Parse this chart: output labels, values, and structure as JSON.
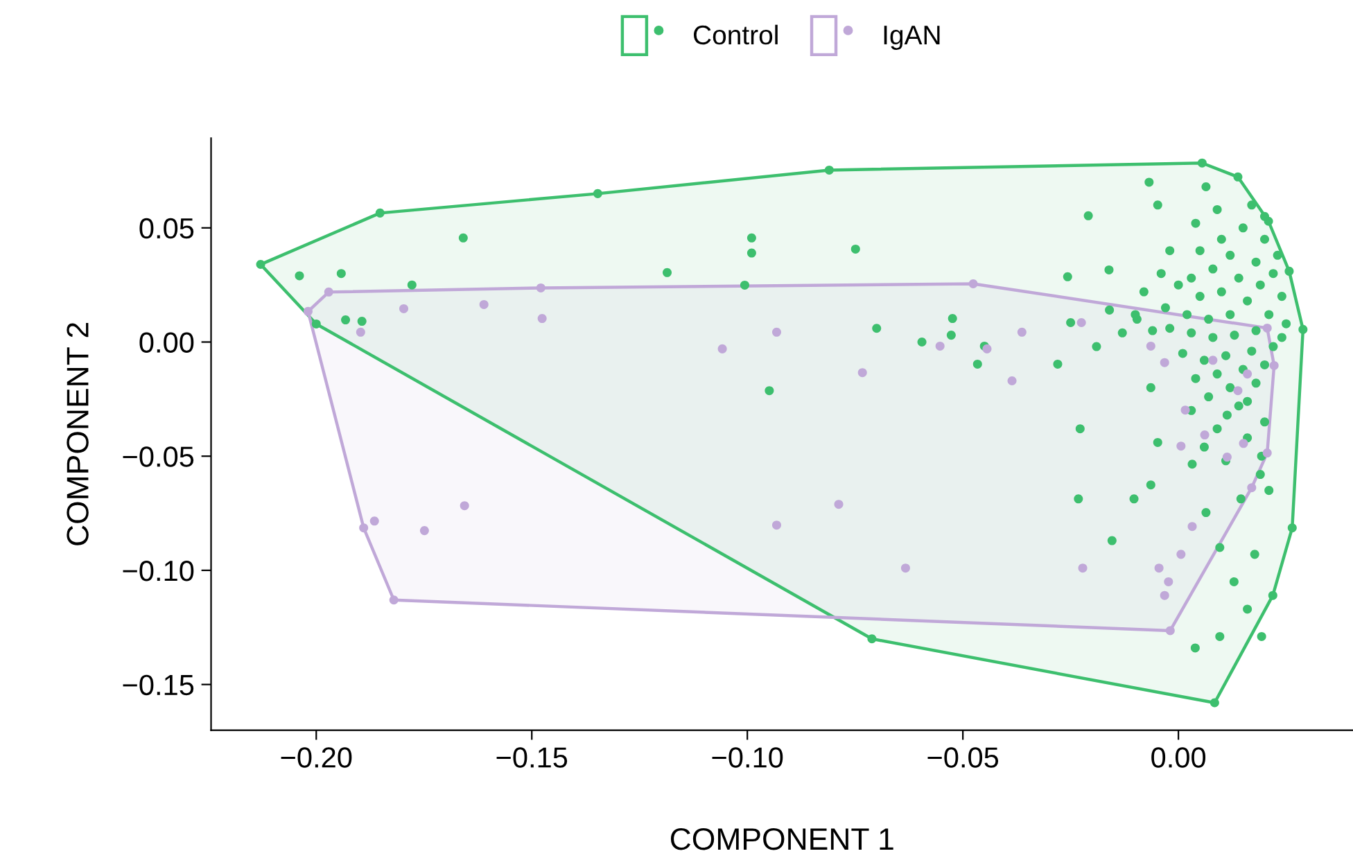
{
  "chart_data": {
    "type": "scatter",
    "xlabel": "COMPONENT 1",
    "ylabel": "COMPONENT 2",
    "xlim": [
      -0.2244,
      0.0405
    ],
    "ylim": [
      -0.17,
      0.0893
    ],
    "xticks": [
      {
        "value": -0.2,
        "label": "−0.20"
      },
      {
        "value": -0.15,
        "label": "−0.15"
      },
      {
        "value": -0.1,
        "label": "−0.10"
      },
      {
        "value": -0.05,
        "label": "−0.05"
      },
      {
        "value": 0.0,
        "label": "0.00"
      }
    ],
    "yticks": [
      {
        "value": -0.15,
        "label": "−0.15"
      },
      {
        "value": -0.1,
        "label": "−0.10"
      },
      {
        "value": -0.05,
        "label": "−0.05"
      },
      {
        "value": 0.0,
        "label": "0.00"
      },
      {
        "value": 0.05,
        "label": "0.05"
      }
    ],
    "grid": false,
    "legend": "top",
    "marker": "circle",
    "series": [
      {
        "name": "Control",
        "color": "#3dbf6e",
        "x": [
          -0.2129,
          -0.1852,
          -0.1347,
          -0.081,
          0.0055,
          0.0138,
          0.0209,
          0.0257,
          0.0289,
          0.0264,
          0.0219,
          0.0084,
          -0.0711,
          -0.2,
          -0.2039,
          -0.1942,
          -0.1659,
          -0.1778,
          -0.1932,
          -0.1894,
          -0.1186,
          -0.099,
          -0.099,
          -0.1006,
          -0.0949,
          -0.0749,
          -0.07,
          -0.0595,
          -0.0527,
          -0.0466,
          -0.045,
          -0.0524,
          -0.025,
          -0.028,
          -0.0228,
          -0.0232,
          -0.0103,
          -0.0154,
          -0.0064,
          -0.0048,
          -0.0068,
          -0.0209,
          -0.0161,
          -0.0257,
          -0.016,
          -0.019,
          -0.0096,
          -0.0064,
          -0.0048,
          0.0032,
          0.0064,
          0.0096,
          0.0129,
          0.016,
          0.0193,
          0.0039,
          0.0096,
          0.0177,
          0.0145,
          0.0193,
          0.0113,
          0.016,
          0.0064,
          0.005,
          0.01,
          0.015,
          0.02,
          0.012,
          0.018,
          0.022,
          0.008,
          0.003,
          0.014,
          0.019,
          0.024,
          0.01,
          0.005,
          0.0,
          -0.004,
          -0.008,
          0.016,
          0.021,
          0.025,
          0.012,
          0.007,
          0.002,
          -0.003,
          0.018,
          0.013,
          0.008,
          0.003,
          -0.002,
          0.022,
          0.017,
          0.011,
          0.006,
          0.001,
          0.015,
          0.02,
          0.009,
          0.004,
          0.012,
          0.018,
          0.007,
          0.014,
          0.02,
          0.009,
          0.003,
          0.016,
          0.006,
          0.011,
          0.019,
          0.021,
          -0.006,
          -0.01,
          -0.013,
          -0.002,
          0.004,
          0.017,
          0.009,
          0.02,
          0.023,
          0.024
        ],
        "values": [
          0.034,
          0.0565,
          0.065,
          0.0753,
          0.0784,
          0.0723,
          0.0529,
          0.031,
          0.0055,
          -0.0814,
          -0.111,
          -0.158,
          -0.13,
          0.0079,
          0.029,
          0.03,
          0.0456,
          0.025,
          0.0097,
          0.0091,
          0.0304,
          0.0456,
          0.039,
          0.0249,
          -0.0213,
          0.0407,
          0.006,
          0.0,
          0.003,
          -0.0097,
          -0.0018,
          0.0103,
          0.0085,
          -0.0097,
          -0.038,
          -0.0687,
          -0.0687,
          -0.087,
          -0.0626,
          0.06,
          0.07,
          0.0553,
          0.0316,
          0.0286,
          0.014,
          -0.002,
          0.01,
          -0.02,
          -0.044,
          -0.0535,
          -0.0747,
          -0.09,
          -0.105,
          -0.117,
          -0.129,
          -0.134,
          -0.129,
          -0.093,
          -0.0687,
          -0.05,
          -0.032,
          -0.026,
          0.068,
          0.04,
          0.045,
          0.05,
          0.045,
          0.038,
          0.035,
          0.03,
          0.032,
          0.028,
          0.028,
          0.025,
          0.02,
          0.022,
          0.02,
          0.025,
          0.03,
          0.022,
          0.018,
          0.012,
          0.008,
          0.012,
          0.01,
          0.012,
          0.015,
          0.005,
          0.003,
          0.002,
          0.004,
          0.006,
          -0.002,
          -0.004,
          -0.006,
          -0.008,
          -0.005,
          -0.012,
          -0.01,
          -0.014,
          -0.016,
          -0.02,
          -0.018,
          -0.024,
          -0.028,
          -0.035,
          -0.038,
          -0.03,
          -0.042,
          -0.046,
          -0.052,
          -0.058,
          -0.065,
          0.005,
          0.012,
          0.004,
          0.04,
          0.052,
          0.06,
          0.058,
          0.055,
          0.038,
          0.002
        ]
      },
      {
        "name": "IgAN",
        "color": "#c0a8d8",
        "x": [
          -0.2019,
          -0.1971,
          -0.1479,
          -0.0476,
          0.0206,
          0.0222,
          0.0206,
          0.017,
          -0.0019,
          -0.182,
          -0.189,
          -0.1897,
          -0.1797,
          -0.1611,
          -0.1476,
          -0.1058,
          -0.0932,
          -0.0733,
          -0.0788,
          -0.0932,
          -0.0633,
          -0.0553,
          -0.0444,
          -0.0363,
          -0.0225,
          -0.0386,
          -0.0222,
          -0.0045,
          -0.0023,
          -0.0032,
          0.0006,
          0.0032,
          0.0006,
          0.0016,
          0.0061,
          0.0113,
          0.0151,
          0.0138,
          0.016,
          0.008,
          -0.0064,
          -0.0032,
          -0.1865,
          -0.1749,
          -0.1656
        ],
        "values": [
          0.0134,
          0.0219,
          0.0237,
          0.0255,
          0.0061,
          -0.0103,
          -0.0486,
          -0.0638,
          -0.1264,
          -0.113,
          -0.0814,
          0.0043,
          0.0146,
          0.0164,
          0.0103,
          -0.003,
          0.0043,
          -0.0134,
          -0.0711,
          -0.0802,
          -0.099,
          -0.0018,
          -0.003,
          0.0043,
          0.0085,
          -0.017,
          -0.099,
          -0.099,
          -0.105,
          -0.111,
          -0.093,
          -0.0808,
          -0.0456,
          -0.0298,
          -0.0407,
          -0.0504,
          -0.0444,
          -0.0213,
          -0.014,
          -0.008,
          -0.0018,
          -0.009,
          -0.0784,
          -0.0826,
          -0.0717
        ]
      },
      {
        "type": "area",
        "marker": "none",
        "color": "#3dbf6e",
        "x": [
          -0.2129,
          -0.2,
          -0.0711,
          0.0084,
          0.0219,
          0.0264,
          0.0289,
          0.0257,
          0.0209,
          0.0138,
          0.0055,
          -0.081,
          -0.1347,
          -0.1852,
          -0.2129
        ],
        "values": [
          0.034,
          0.0079,
          -0.13,
          -0.158,
          -0.111,
          -0.0814,
          0.0055,
          0.031,
          0.0529,
          0.0723,
          0.0784,
          0.0753,
          0.065,
          0.0565,
          0.034
        ]
      },
      {
        "type": "area",
        "marker": "none",
        "color": "#c0a8d8",
        "x": [
          -0.2019,
          -0.189,
          -0.182,
          -0.0019,
          0.017,
          0.0206,
          0.0222,
          0.0206,
          -0.0476,
          -0.1479,
          -0.1971,
          -0.2019
        ],
        "values": [
          0.0134,
          -0.0814,
          -0.113,
          -0.1264,
          -0.0638,
          -0.0486,
          -0.0103,
          0.0061,
          0.0255,
          0.0237,
          0.0219,
          0.0134
        ]
      }
    ]
  }
}
